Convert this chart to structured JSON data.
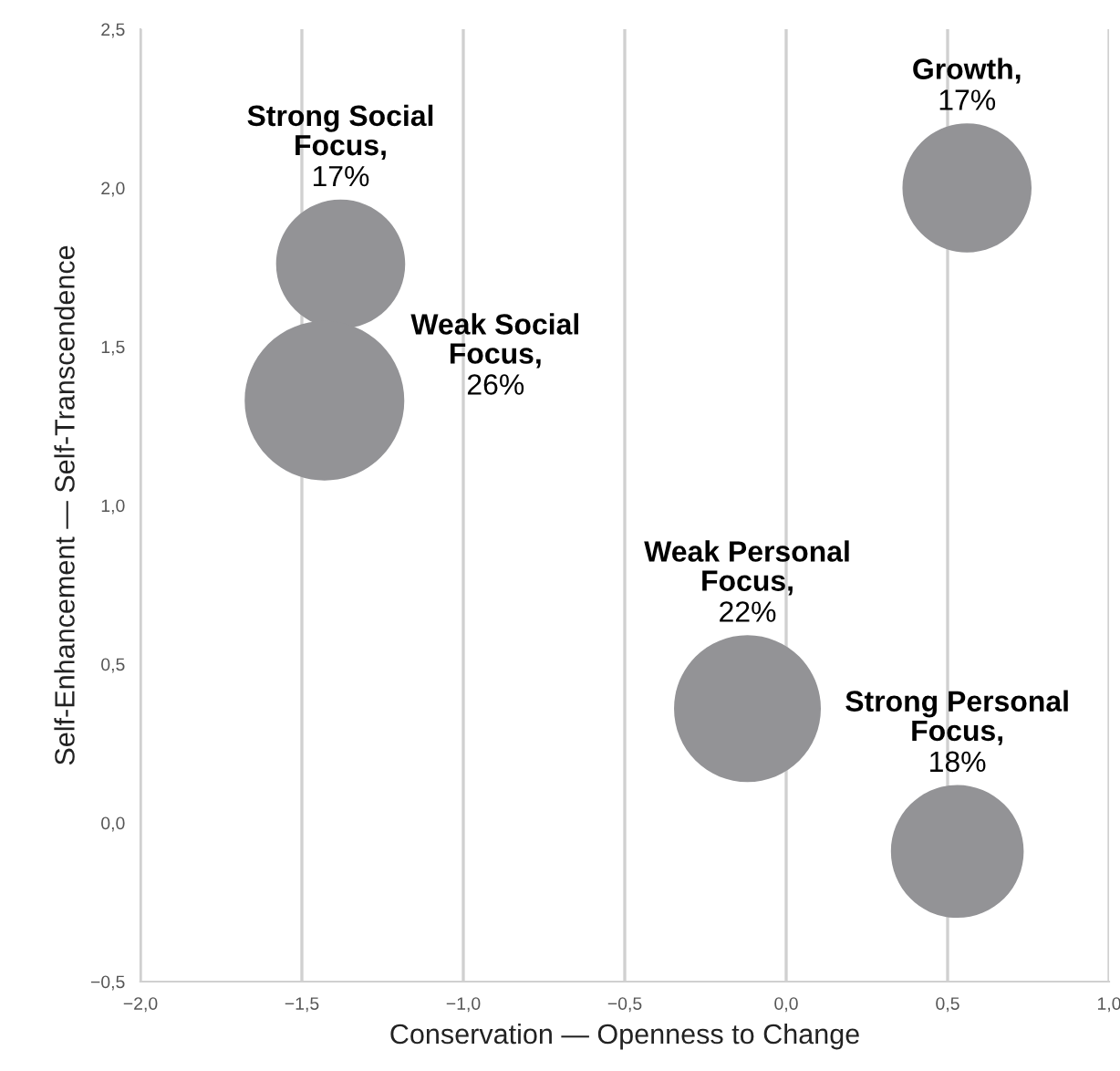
{
  "chart_data": {
    "type": "bubble",
    "xlabel": "Conservation — Openness to Change",
    "ylabel": "Self-Enhancement — Self-Transcendence",
    "series": [
      {
        "color": "#939396",
        "x": [
          -1.38,
          -1.43,
          0.56,
          -0.12,
          0.53
        ],
        "values": [
          1.76,
          1.33,
          2.0,
          0.36,
          -0.09
        ],
        "sizes": [
          0.654,
          1,
          0.654,
          0.846,
          0.692
        ]
      }
    ],
    "annotations": [
      {
        "text": "Strong Social\nFocus,\n17%",
        "x": -1.38,
        "y": 1.76
      },
      {
        "text": "Weak Social\nFocus,\n26%",
        "x": -1.43,
        "y": 1.33
      },
      {
        "text": "Growth,\n17%",
        "x": 0.56,
        "y": 2.0
      },
      {
        "text": "Weak Personal\nFocus,\n22%",
        "x": -0.12,
        "y": 0.36
      },
      {
        "text": "Strong Personal\nFocus,\n18%",
        "x": 0.53,
        "y": -0.09
      }
    ],
    "xlim": [
      -2.0,
      1.0
    ],
    "ylim": [
      -0.5,
      2.5
    ],
    "xticks": [
      {
        "value": -2.0,
        "label": "−2,0"
      },
      {
        "value": -1.5,
        "label": "−1,5"
      },
      {
        "value": -1.0,
        "label": "−1,0"
      },
      {
        "value": -0.5,
        "label": "−0,5"
      },
      {
        "value": 0.0,
        "label": "0,0"
      },
      {
        "value": 0.5,
        "label": "0,5"
      },
      {
        "value": 1.0,
        "label": "1,0"
      }
    ],
    "yticks": [
      {
        "value": -0.5,
        "label": "−0,5"
      },
      {
        "value": 0.0,
        "label": "0,0"
      },
      {
        "value": 0.5,
        "label": "0,5"
      },
      {
        "value": 1.0,
        "label": "1,0"
      },
      {
        "value": 1.5,
        "label": "1,5"
      },
      {
        "value": 2.0,
        "label": "2,0"
      },
      {
        "value": 2.5,
        "label": "2,5"
      }
    ],
    "grid": "x"
  }
}
